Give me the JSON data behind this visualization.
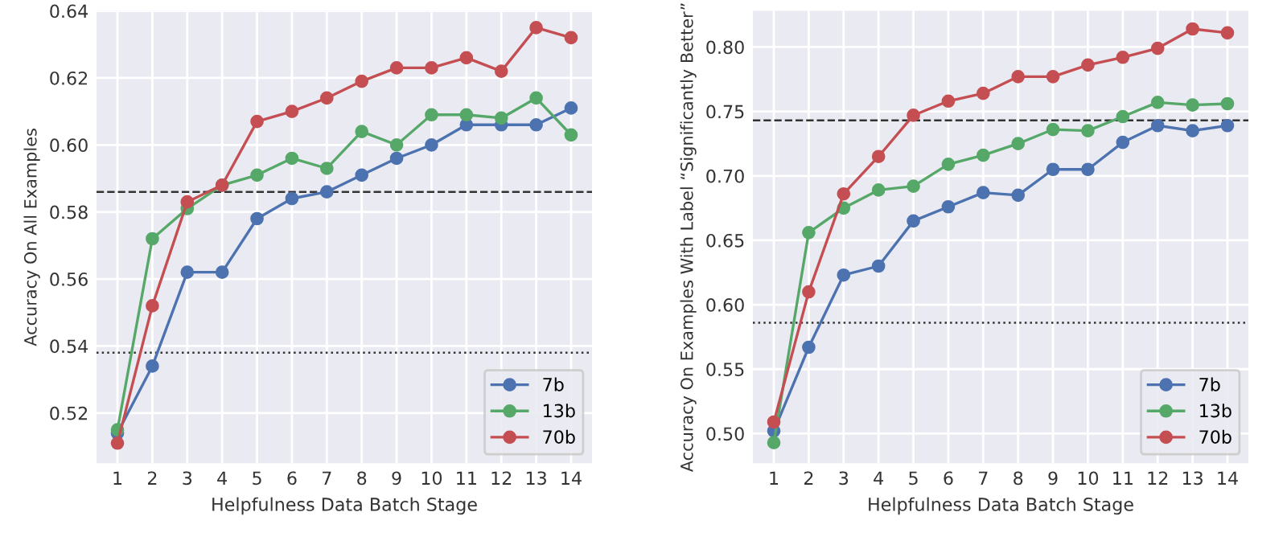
{
  "chart_data": [
    {
      "type": "line",
      "categories": [
        "1",
        "2",
        "3",
        "4",
        "5",
        "6",
        "7",
        "8",
        "9",
        "10",
        "11",
        "12",
        "13",
        "14"
      ],
      "xlabel": "Helpfulness Data Batch Stage",
      "ylabel": "Accuracy On All Examples",
      "ylim": [
        0.505,
        0.64
      ],
      "yticks": [
        {
          "value": 0.52,
          "label": "0.52"
        },
        {
          "value": 0.54,
          "label": "0.54"
        },
        {
          "value": 0.56,
          "label": "0.56"
        },
        {
          "value": 0.58,
          "label": "0.58"
        },
        {
          "value": 0.6,
          "label": "0.60"
        },
        {
          "value": 0.62,
          "label": "0.62"
        },
        {
          "value": 0.64,
          "label": "0.64"
        }
      ],
      "grid": true,
      "legend": "bottom right",
      "marker": "circle",
      "line_style": "solid",
      "series": [
        {
          "name": "7b",
          "color": "#4c72b0",
          "values": [
            0.514,
            0.534,
            0.562,
            0.562,
            0.578,
            0.584,
            0.586,
            0.591,
            0.596,
            0.6,
            0.606,
            0.606,
            0.606,
            0.611
          ]
        },
        {
          "name": "13b",
          "color": "#55a868",
          "values": [
            0.515,
            0.572,
            0.581,
            0.588,
            0.591,
            0.596,
            0.593,
            0.604,
            0.6,
            0.609,
            0.609,
            0.608,
            0.614,
            0.603
          ]
        },
        {
          "name": "70b",
          "color": "#c44e52",
          "values": [
            0.511,
            0.552,
            0.583,
            0.588,
            0.607,
            0.61,
            0.614,
            0.619,
            0.623,
            0.623,
            0.626,
            0.622,
            0.635,
            0.632
          ]
        }
      ],
      "ref_lines": [
        {
          "axis": "y",
          "value": 0.586,
          "color": "#333333",
          "line_style": "dashed"
        },
        {
          "axis": "y",
          "value": 0.538,
          "color": "#333333",
          "line_style": "dotted"
        }
      ]
    },
    {
      "type": "line",
      "categories": [
        "1",
        "2",
        "3",
        "4",
        "5",
        "6",
        "7",
        "8",
        "9",
        "10",
        "11",
        "12",
        "13",
        "14"
      ],
      "xlabel": "Helpfulness Data Batch Stage",
      "ylabel": "Accuracy On Examples With Label “Significantly Better”",
      "ylim": [
        0.477,
        0.828
      ],
      "yticks": [
        {
          "value": 0.5,
          "label": "0.50"
        },
        {
          "value": 0.55,
          "label": "0.55"
        },
        {
          "value": 0.6,
          "label": "0.60"
        },
        {
          "value": 0.65,
          "label": "0.65"
        },
        {
          "value": 0.7,
          "label": "0.70"
        },
        {
          "value": 0.75,
          "label": "0.75"
        },
        {
          "value": 0.8,
          "label": "0.80"
        }
      ],
      "grid": true,
      "legend": "bottom right",
      "marker": "circle",
      "line_style": "solid",
      "series": [
        {
          "name": "7b",
          "color": "#4c72b0",
          "values": [
            0.502,
            0.567,
            0.623,
            0.63,
            0.665,
            0.676,
            0.687,
            0.685,
            0.705,
            0.705,
            0.726,
            0.739,
            0.735,
            0.739
          ]
        },
        {
          "name": "13b",
          "color": "#55a868",
          "values": [
            0.493,
            0.656,
            0.675,
            0.689,
            0.692,
            0.709,
            0.716,
            0.725,
            0.736,
            0.735,
            0.746,
            0.757,
            0.755,
            0.756
          ]
        },
        {
          "name": "70b",
          "color": "#c44e52",
          "values": [
            0.509,
            0.61,
            0.686,
            0.715,
            0.747,
            0.758,
            0.764,
            0.777,
            0.777,
            0.786,
            0.792,
            0.799,
            0.814,
            0.811
          ]
        }
      ],
      "ref_lines": [
        {
          "axis": "y",
          "value": 0.743,
          "color": "#333333",
          "line_style": "dashed"
        },
        {
          "axis": "y",
          "value": 0.586,
          "color": "#333333",
          "line_style": "dotted"
        }
      ]
    }
  ]
}
